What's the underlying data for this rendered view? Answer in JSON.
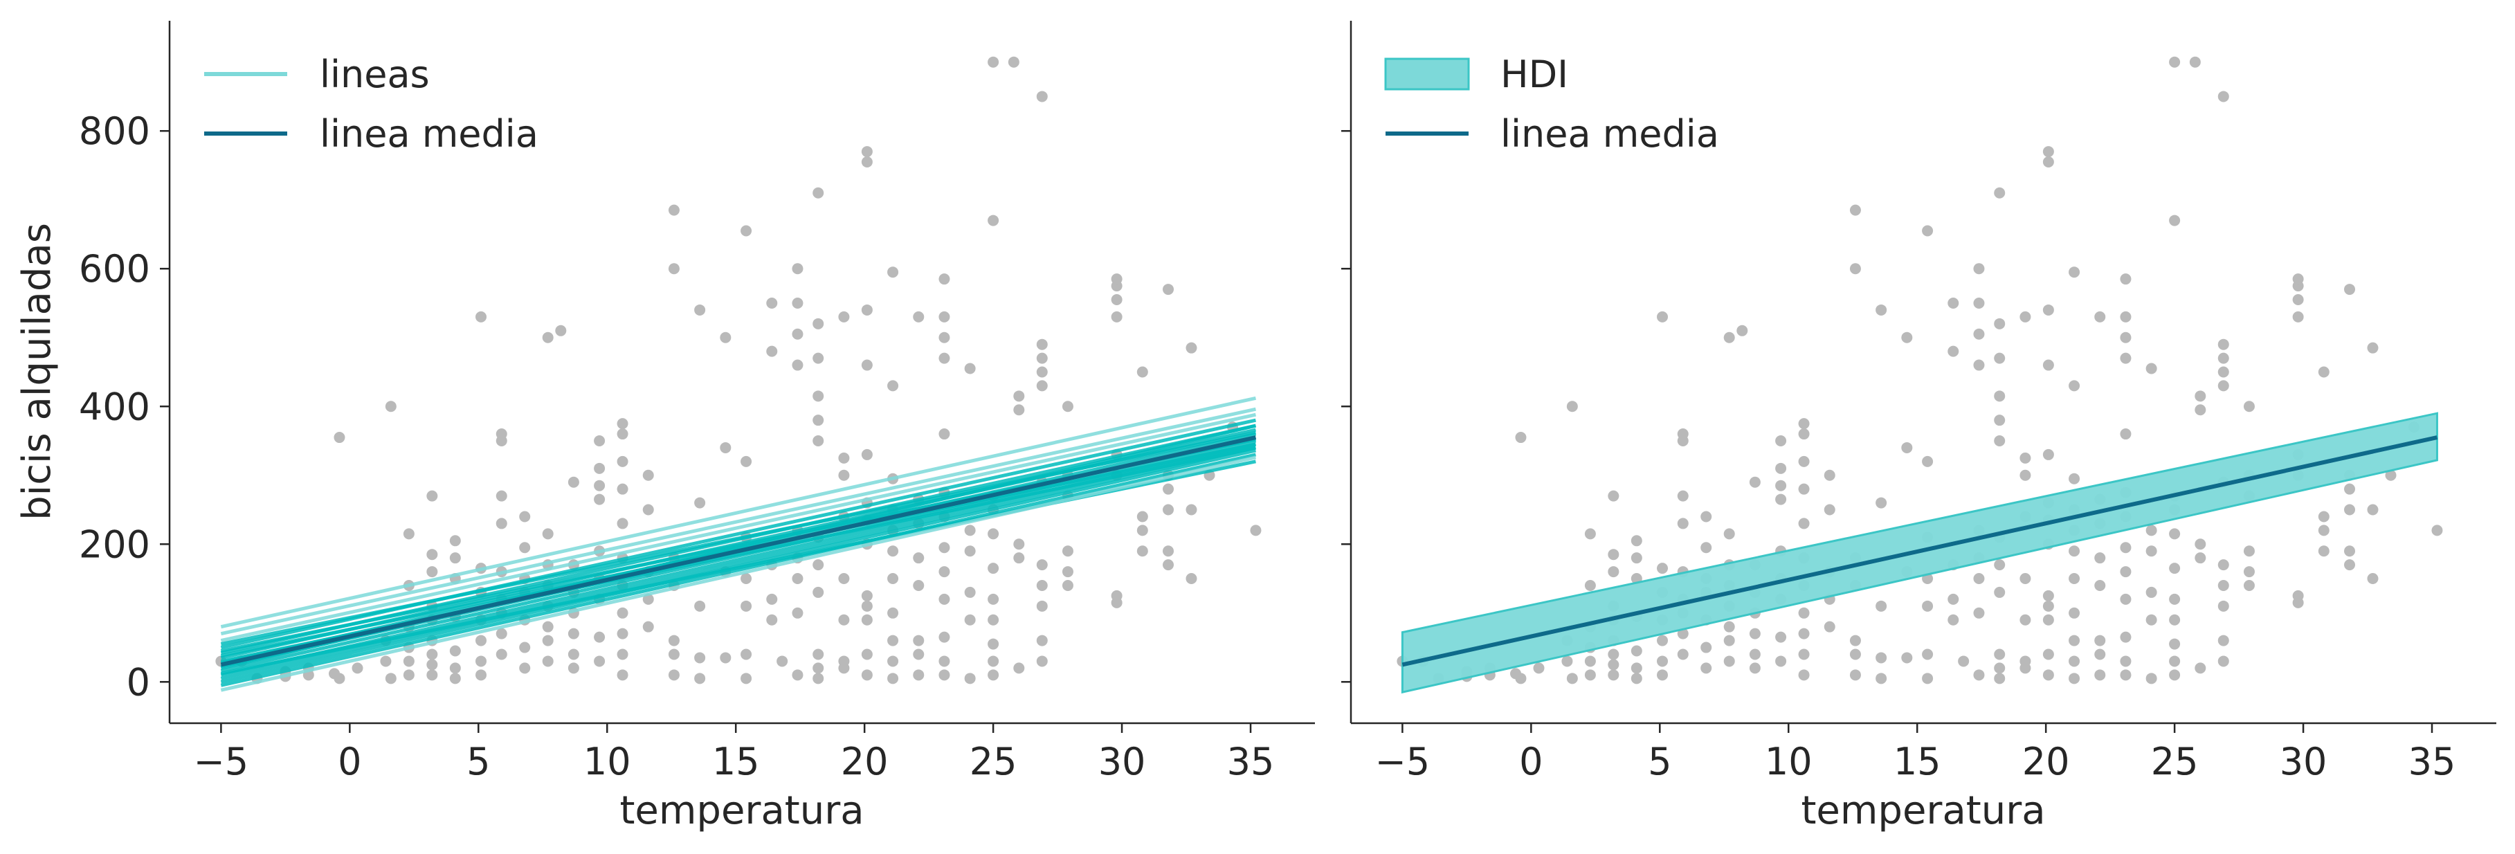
{
  "chart_data": [
    {
      "type": "scatter",
      "panel": "left",
      "xlabel": "temperatura",
      "ylabel": "bicis alquiladas",
      "xlim": [
        -7,
        37.5
      ],
      "ylim": [
        -60,
        960
      ],
      "xticks": [
        -5,
        0,
        5,
        10,
        15,
        20,
        25,
        30,
        35
      ],
      "yticks": [
        0,
        200,
        400,
        600,
        800
      ],
      "grid": false,
      "legend_position": "top-left",
      "legend": [
        {
          "label": "lineas",
          "kind": "line",
          "color": "#7dd9d9"
        },
        {
          "label": "linea media",
          "kind": "line",
          "color": "#0e6a8a"
        }
      ],
      "mean_line": {
        "x": [
          -5,
          35.2
        ],
        "y": [
          25,
          355
        ]
      },
      "sample_lines": [
        {
          "y_start": 80,
          "y_end": 412
        },
        {
          "y_start": 70,
          "y_end": 396
        },
        {
          "y_start": 60,
          "y_end": 388
        },
        {
          "y_start": 50,
          "y_end": 380
        },
        {
          "y_start": 42,
          "y_end": 372
        },
        {
          "y_start": 35,
          "y_end": 366
        },
        {
          "y_start": 28,
          "y_end": 360
        },
        {
          "y_start": 22,
          "y_end": 355
        },
        {
          "y_start": 16,
          "y_end": 350
        },
        {
          "y_start": 10,
          "y_end": 345
        },
        {
          "y_start": 5,
          "y_end": 340
        },
        {
          "y_start": 0,
          "y_end": 336
        },
        {
          "y_start": -5,
          "y_end": 330
        },
        {
          "y_start": 12,
          "y_end": 320
        },
        {
          "y_start": 38,
          "y_end": 345
        },
        {
          "y_start": 55,
          "y_end": 362
        },
        {
          "y_start": -12,
          "y_end": 326
        },
        {
          "y_start": 20,
          "y_end": 372
        },
        {
          "y_start": 30,
          "y_end": 340
        },
        {
          "y_start": 45,
          "y_end": 352
        }
      ],
      "colors": {
        "points": "#b9b9b9",
        "samples": "#00bcbc",
        "mean": "#0e6a8a"
      }
    },
    {
      "type": "scatter",
      "panel": "right",
      "xlabel": "temperatura",
      "ylabel": "",
      "xlim": [
        -7,
        37.5
      ],
      "ylim": [
        -60,
        960
      ],
      "xticks": [
        -5,
        0,
        5,
        10,
        15,
        20,
        25,
        30,
        35
      ],
      "yticks": [
        0,
        200,
        400,
        600,
        800
      ],
      "grid": false,
      "legend_position": "top-left",
      "legend": [
        {
          "label": "HDI",
          "kind": "patch",
          "color": "#7dd9d9"
        },
        {
          "label": "linea media",
          "kind": "line",
          "color": "#0e6a8a"
        }
      ],
      "mean_line": {
        "x": [
          -5,
          35.2
        ],
        "y": [
          25,
          355
        ]
      },
      "hdi_band": {
        "x": [
          -5,
          35.2
        ],
        "lower": [
          -15,
          322
        ],
        "upper": [
          72,
          390
        ]
      },
      "colors": {
        "points": "#b9b9b9",
        "band": "#7dd9d9",
        "band_edge": "#3cc6c6",
        "mean": "#0e6a8a"
      }
    }
  ],
  "points": [
    [
      -5,
      30
    ],
    [
      -4.2,
      30
    ],
    [
      -3.6,
      5
    ],
    [
      -2.5,
      8
    ],
    [
      -2.5,
      15
    ],
    [
      -1.6,
      10
    ],
    [
      -1.6,
      20
    ],
    [
      -0.6,
      12
    ],
    [
      -0.4,
      355
    ],
    [
      -0.4,
      5
    ],
    [
      0.3,
      20
    ],
    [
      1.4,
      60
    ],
    [
      1.4,
      30
    ],
    [
      1.6,
      400
    ],
    [
      1.6,
      5
    ],
    [
      2.3,
      50
    ],
    [
      2.3,
      140
    ],
    [
      2.3,
      215
    ],
    [
      2.3,
      10
    ],
    [
      2.3,
      30
    ],
    [
      2.3,
      80
    ],
    [
      3.2,
      10
    ],
    [
      3.2,
      25
    ],
    [
      3.2,
      40
    ],
    [
      3.2,
      60
    ],
    [
      3.2,
      90
    ],
    [
      3.2,
      110
    ],
    [
      3.2,
      160
    ],
    [
      3.2,
      185
    ],
    [
      3.2,
      270
    ],
    [
      4.1,
      5
    ],
    [
      4.1,
      20
    ],
    [
      4.1,
      45
    ],
    [
      4.1,
      95
    ],
    [
      4.1,
      150
    ],
    [
      4.1,
      180
    ],
    [
      4.1,
      205
    ],
    [
      5.1,
      10
    ],
    [
      5.1,
      30
    ],
    [
      5.1,
      60
    ],
    [
      5.1,
      90
    ],
    [
      5.1,
      130
    ],
    [
      5.1,
      165
    ],
    [
      5.1,
      530
    ],
    [
      5.9,
      40
    ],
    [
      5.9,
      70
    ],
    [
      5.9,
      100
    ],
    [
      5.9,
      120
    ],
    [
      5.9,
      160
    ],
    [
      5.9,
      230
    ],
    [
      5.9,
      270
    ],
    [
      5.9,
      350
    ],
    [
      5.9,
      360
    ],
    [
      6.8,
      20
    ],
    [
      6.8,
      50
    ],
    [
      6.8,
      90
    ],
    [
      6.8,
      130
    ],
    [
      6.8,
      150
    ],
    [
      6.8,
      195
    ],
    [
      6.8,
      240
    ],
    [
      7.7,
      30
    ],
    [
      7.7,
      60
    ],
    [
      7.7,
      80
    ],
    [
      7.7,
      110
    ],
    [
      7.7,
      140
    ],
    [
      7.7,
      170
    ],
    [
      7.7,
      215
    ],
    [
      7.7,
      500
    ],
    [
      8.2,
      510
    ],
    [
      8.7,
      20
    ],
    [
      8.7,
      40
    ],
    [
      8.7,
      70
    ],
    [
      8.7,
      100
    ],
    [
      8.7,
      130
    ],
    [
      8.7,
      170
    ],
    [
      8.7,
      290
    ],
    [
      9.7,
      30
    ],
    [
      9.7,
      65
    ],
    [
      9.7,
      120
    ],
    [
      9.7,
      150
    ],
    [
      9.7,
      190
    ],
    [
      9.7,
      265
    ],
    [
      9.7,
      285
    ],
    [
      9.7,
      310
    ],
    [
      9.7,
      350
    ],
    [
      10.6,
      10
    ],
    [
      10.6,
      40
    ],
    [
      10.6,
      70
    ],
    [
      10.6,
      100
    ],
    [
      10.6,
      140
    ],
    [
      10.6,
      180
    ],
    [
      10.6,
      230
    ],
    [
      10.6,
      280
    ],
    [
      10.6,
      320
    ],
    [
      10.6,
      360
    ],
    [
      10.6,
      375
    ],
    [
      11.6,
      80
    ],
    [
      11.6,
      120
    ],
    [
      11.6,
      160
    ],
    [
      11.6,
      250
    ],
    [
      11.6,
      300
    ],
    [
      12.6,
      10
    ],
    [
      12.6,
      40
    ],
    [
      12.6,
      60
    ],
    [
      12.6,
      140
    ],
    [
      12.6,
      180
    ],
    [
      12.6,
      600
    ],
    [
      12.6,
      685
    ],
    [
      13.6,
      5
    ],
    [
      13.6,
      35
    ],
    [
      13.6,
      110
    ],
    [
      13.6,
      260
    ],
    [
      13.6,
      540
    ],
    [
      14.6,
      35
    ],
    [
      14.6,
      160
    ],
    [
      14.6,
      340
    ],
    [
      14.6,
      500
    ],
    [
      15.4,
      5
    ],
    [
      15.4,
      40
    ],
    [
      15.4,
      110
    ],
    [
      15.4,
      150
    ],
    [
      15.4,
      210
    ],
    [
      15.4,
      320
    ],
    [
      15.4,
      655
    ],
    [
      16.4,
      90
    ],
    [
      16.4,
      120
    ],
    [
      16.4,
      170
    ],
    [
      16.4,
      480
    ],
    [
      16.4,
      550
    ],
    [
      16.8,
      30
    ],
    [
      17.4,
      10
    ],
    [
      17.4,
      100
    ],
    [
      17.4,
      150
    ],
    [
      17.4,
      180
    ],
    [
      17.4,
      220
    ],
    [
      17.4,
      460
    ],
    [
      17.4,
      505
    ],
    [
      17.4,
      550
    ],
    [
      17.4,
      600
    ],
    [
      18.2,
      5
    ],
    [
      18.2,
      20
    ],
    [
      18.2,
      40
    ],
    [
      18.2,
      130
    ],
    [
      18.2,
      170
    ],
    [
      18.2,
      210
    ],
    [
      18.2,
      350
    ],
    [
      18.2,
      380
    ],
    [
      18.2,
      415
    ],
    [
      18.2,
      470
    ],
    [
      18.2,
      520
    ],
    [
      18.2,
      710
    ],
    [
      19.2,
      20
    ],
    [
      19.2,
      30
    ],
    [
      19.2,
      90
    ],
    [
      19.2,
      150
    ],
    [
      19.2,
      240
    ],
    [
      19.2,
      300
    ],
    [
      19.2,
      325
    ],
    [
      19.2,
      530
    ],
    [
      20.1,
      10
    ],
    [
      20.1,
      40
    ],
    [
      20.1,
      90
    ],
    [
      20.1,
      110
    ],
    [
      20.1,
      125
    ],
    [
      20.1,
      200
    ],
    [
      20.1,
      235
    ],
    [
      20.1,
      260
    ],
    [
      20.1,
      330
    ],
    [
      20.1,
      460
    ],
    [
      20.1,
      540
    ],
    [
      20.1,
      755
    ],
    [
      20.1,
      770
    ],
    [
      21.1,
      5
    ],
    [
      21.1,
      30
    ],
    [
      21.1,
      60
    ],
    [
      21.1,
      100
    ],
    [
      21.1,
      150
    ],
    [
      21.1,
      190
    ],
    [
      21.1,
      220
    ],
    [
      21.1,
      250
    ],
    [
      21.1,
      295
    ],
    [
      21.1,
      430
    ],
    [
      21.1,
      595
    ],
    [
      22.1,
      10
    ],
    [
      22.1,
      40
    ],
    [
      22.1,
      60
    ],
    [
      22.1,
      140
    ],
    [
      22.1,
      180
    ],
    [
      22.1,
      230
    ],
    [
      22.1,
      265
    ],
    [
      22.1,
      530
    ],
    [
      23.1,
      10
    ],
    [
      23.1,
      30
    ],
    [
      23.1,
      65
    ],
    [
      23.1,
      120
    ],
    [
      23.1,
      160
    ],
    [
      23.1,
      195
    ],
    [
      23.1,
      240
    ],
    [
      23.1,
      275
    ],
    [
      23.1,
      360
    ],
    [
      23.1,
      470
    ],
    [
      23.1,
      500
    ],
    [
      23.1,
      530
    ],
    [
      23.1,
      585
    ],
    [
      24.1,
      5
    ],
    [
      24.1,
      90
    ],
    [
      24.1,
      130
    ],
    [
      24.1,
      190
    ],
    [
      24.1,
      220
    ],
    [
      24.1,
      455
    ],
    [
      25.0,
      10
    ],
    [
      25.0,
      30
    ],
    [
      25.0,
      55
    ],
    [
      25.0,
      90
    ],
    [
      25.0,
      120
    ],
    [
      25.0,
      165
    ],
    [
      25.0,
      215
    ],
    [
      25.0,
      250
    ],
    [
      25.0,
      270
    ],
    [
      25.0,
      670
    ],
    [
      25.0,
      900
    ],
    [
      25.8,
      900
    ],
    [
      26.0,
      20
    ],
    [
      26.0,
      180
    ],
    [
      26.0,
      200
    ],
    [
      26.0,
      395
    ],
    [
      26.0,
      415
    ],
    [
      26.9,
      30
    ],
    [
      26.9,
      60
    ],
    [
      26.9,
      110
    ],
    [
      26.9,
      140
    ],
    [
      26.9,
      170
    ],
    [
      26.9,
      290
    ],
    [
      26.9,
      430
    ],
    [
      26.9,
      450
    ],
    [
      26.9,
      470
    ],
    [
      26.9,
      490
    ],
    [
      26.9,
      850
    ],
    [
      27.9,
      140
    ],
    [
      27.9,
      160
    ],
    [
      27.9,
      190
    ],
    [
      27.9,
      270
    ],
    [
      27.9,
      300
    ],
    [
      27.9,
      400
    ],
    [
      29.8,
      115
    ],
    [
      29.8,
      125
    ],
    [
      29.8,
      300
    ],
    [
      29.8,
      330
    ],
    [
      29.8,
      530
    ],
    [
      29.8,
      555
    ],
    [
      29.8,
      575
    ],
    [
      29.8,
      585
    ],
    [
      30.8,
      190
    ],
    [
      30.8,
      220
    ],
    [
      30.8,
      240
    ],
    [
      30.8,
      450
    ],
    [
      31.8,
      170
    ],
    [
      31.8,
      190
    ],
    [
      31.8,
      250
    ],
    [
      31.8,
      280
    ],
    [
      31.8,
      300
    ],
    [
      31.8,
      570
    ],
    [
      32.7,
      150
    ],
    [
      32.7,
      250
    ],
    [
      32.7,
      485
    ],
    [
      33.4,
      300
    ],
    [
      34.3,
      370
    ],
    [
      35.2,
      220
    ]
  ]
}
